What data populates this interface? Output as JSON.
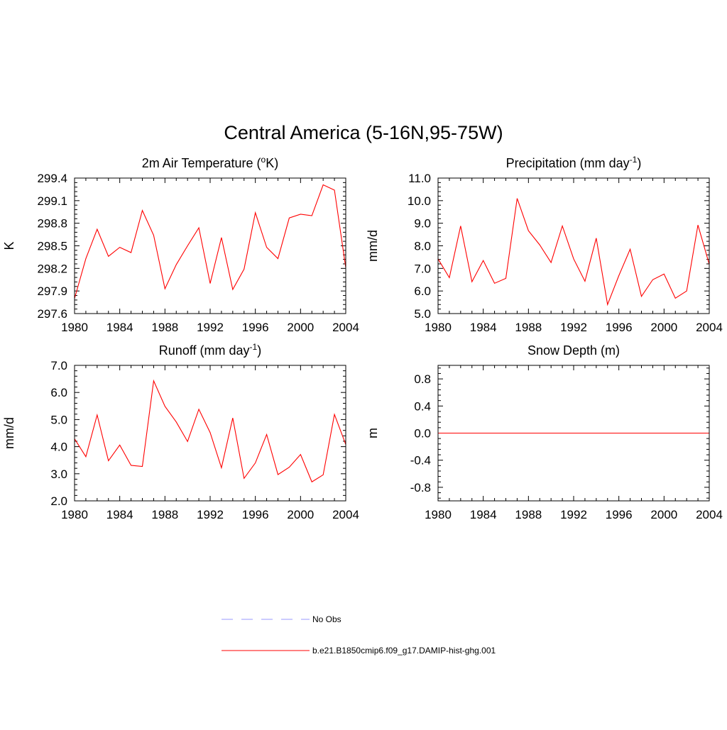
{
  "title": "Central America (5-16N,95-75W)",
  "legend": [
    {
      "label": "No Obs",
      "color": "#9999ff",
      "dash": true
    },
    {
      "label": "b.e21.B1850cmip6.f09_g17.DAMIP-hist-ghg.001",
      "color": "#ff0000",
      "dash": false
    }
  ],
  "chart_data": [
    {
      "type": "line",
      "title": "2m Air Temperature (",
      "title_sup": "o",
      "title_after": "K)",
      "xlabel": "",
      "ylabel": "K",
      "xlim": [
        1980,
        2004
      ],
      "ylim": [
        297.6,
        299.4
      ],
      "xticks": [
        1980,
        1984,
        1988,
        1992,
        1996,
        2000,
        2004
      ],
      "yticks": [
        "297.6",
        "297.9",
        "298.2",
        "298.5",
        "298.8",
        "299.1",
        "299.4"
      ],
      "x": [
        1980,
        1981,
        1982,
        1983,
        1984,
        1985,
        1986,
        1987,
        1988,
        1989,
        1990,
        1991,
        1992,
        1993,
        1994,
        1995,
        1996,
        1997,
        1998,
        1999,
        2000,
        2001,
        2002,
        2003,
        2004
      ],
      "series": [
        {
          "color": "#ff0000",
          "values": [
            297.8,
            298.33,
            298.72,
            298.36,
            298.48,
            298.41,
            298.97,
            298.64,
            297.93,
            298.25,
            298.5,
            298.74,
            298.0,
            298.61,
            297.92,
            298.19,
            298.94,
            298.48,
            298.33,
            298.87,
            298.92,
            298.9,
            299.31,
            299.24,
            298.21
          ]
        }
      ]
    },
    {
      "type": "line",
      "title": "Precipitation (mm day",
      "title_sup": "-1",
      "title_after": ")",
      "xlabel": "",
      "ylabel": "mm/d",
      "xlim": [
        1980,
        2004
      ],
      "ylim": [
        5.0,
        11.0
      ],
      "xticks": [
        1980,
        1984,
        1988,
        1992,
        1996,
        2000,
        2004
      ],
      "yticks": [
        "5.0",
        "6.0",
        "7.0",
        "8.0",
        "9.0",
        "10.0",
        "11.0"
      ],
      "x": [
        1980,
        1981,
        1982,
        1983,
        1984,
        1985,
        1986,
        1987,
        1988,
        1989,
        1990,
        1991,
        1992,
        1993,
        1994,
        1995,
        1996,
        1997,
        1998,
        1999,
        2000,
        2001,
        2002,
        2003,
        2004
      ],
      "series": [
        {
          "color": "#ff0000",
          "values": [
            7.42,
            6.59,
            8.88,
            6.41,
            7.35,
            6.34,
            6.56,
            10.1,
            8.67,
            8.04,
            7.26,
            8.88,
            7.42,
            6.43,
            8.34,
            5.4,
            6.68,
            7.85,
            5.76,
            6.5,
            6.75,
            5.68,
            6.0,
            8.92,
            7.18
          ]
        }
      ]
    },
    {
      "type": "line",
      "title": "Runoff (mm day",
      "title_sup": "-1",
      "title_after": ")",
      "xlabel": "",
      "ylabel": "mm/d",
      "xlim": [
        1980,
        2004
      ],
      "ylim": [
        2.0,
        7.0
      ],
      "xticks": [
        1980,
        1984,
        1988,
        1992,
        1996,
        2000,
        2004
      ],
      "yticks": [
        "2.0",
        "3.0",
        "4.0",
        "5.0",
        "6.0",
        "7.0"
      ],
      "x": [
        1980,
        1981,
        1982,
        1983,
        1984,
        1985,
        1986,
        1987,
        1988,
        1989,
        1990,
        1991,
        1992,
        1993,
        1994,
        1995,
        1996,
        1997,
        1998,
        1999,
        2000,
        2001,
        2002,
        2003,
        2004
      ],
      "series": [
        {
          "color": "#ff0000",
          "values": [
            4.29,
            3.63,
            5.17,
            3.48,
            4.06,
            3.31,
            3.27,
            6.43,
            5.49,
            4.91,
            4.19,
            5.38,
            4.52,
            3.22,
            5.06,
            2.83,
            3.4,
            4.45,
            2.97,
            3.24,
            3.71,
            2.7,
            2.96,
            5.19,
            4.08
          ]
        }
      ]
    },
    {
      "type": "line",
      "title": "Snow Depth (m)",
      "title_sup": "",
      "title_after": "",
      "xlabel": "",
      "ylabel": "m",
      "xlim": [
        1980,
        2004
      ],
      "ylim": [
        -1.0,
        1.0
      ],
      "xticks": [
        1980,
        1984,
        1988,
        1992,
        1996,
        2000,
        2004
      ],
      "yticks": [
        "-0.8",
        "-0.4",
        "0.0",
        "0.4",
        "0.8"
      ],
      "x": [
        1980,
        1981,
        1982,
        1983,
        1984,
        1985,
        1986,
        1987,
        1988,
        1989,
        1990,
        1991,
        1992,
        1993,
        1994,
        1995,
        1996,
        1997,
        1998,
        1999,
        2000,
        2001,
        2002,
        2003,
        2004
      ],
      "series": [
        {
          "color": "#ff0000",
          "values": [
            0,
            0,
            0,
            0,
            0,
            0,
            0,
            0,
            0,
            0,
            0,
            0,
            0,
            0,
            0,
            0,
            0,
            0,
            0,
            0,
            0,
            0,
            0,
            0,
            0
          ]
        }
      ]
    }
  ]
}
